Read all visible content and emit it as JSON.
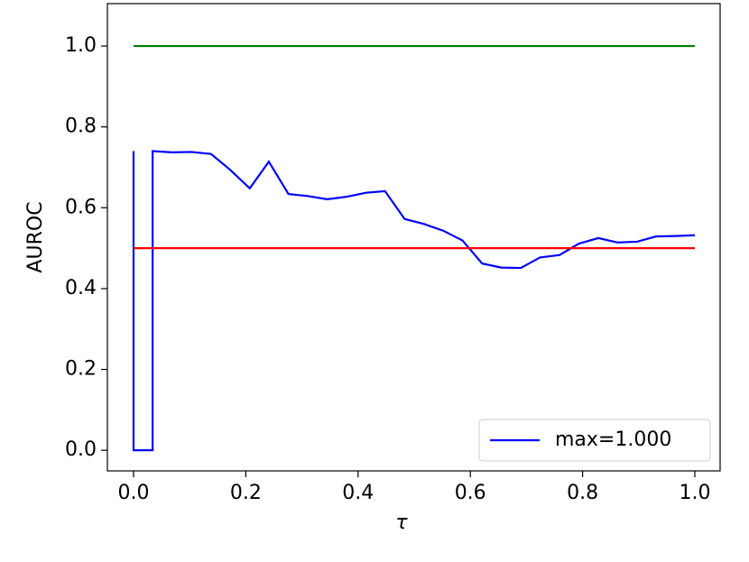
{
  "chart_data": {
    "type": "line",
    "xlabel": "τ",
    "ylabel": "AUROC",
    "xlim": [
      -0.0466,
      1.045
    ],
    "ylim": [
      -0.051,
      1.105
    ],
    "xticks": [
      {
        "value": 0,
        "label": "0.0"
      },
      0.2,
      0.4,
      0.6,
      0.8,
      {
        "value": 1,
        "label": "1.0"
      }
    ],
    "yticks": [
      {
        "value": 0,
        "label": "0.0"
      },
      0.2,
      0.4,
      0.6,
      0.8,
      {
        "value": 1,
        "label": "1.0"
      }
    ],
    "legend": "lower right",
    "series": [
      {
        "name": "max=1.000",
        "color": "#0000ff",
        "x": [
          0,
          0,
          0.034,
          0.034,
          0.069,
          0.103,
          0.138,
          0.172,
          0.207,
          0.241,
          0.276,
          0.31,
          0.345,
          0.379,
          0.414,
          0.448,
          0.483,
          0.517,
          0.552,
          0.586,
          0.621,
          0.655,
          0.69,
          0.724,
          0.759,
          0.793,
          0.828,
          0.862,
          0.897,
          0.931,
          0.966,
          1.0
        ],
        "values": [
          0.74,
          0,
          0,
          0.74,
          0.737,
          0.738,
          0.733,
          0.694,
          0.648,
          0.714,
          0.634,
          0.629,
          0.621,
          0.627,
          0.637,
          0.641,
          0.572,
          0.56,
          0.543,
          0.519,
          0.462,
          0.452,
          0.451,
          0.477,
          0.483,
          0.511,
          0.525,
          0.514,
          0.516,
          0.529,
          0.53,
          0.532
        ]
      },
      {
        "color": "#008000",
        "x": [
          0,
          1
        ],
        "values": [
          1,
          1
        ]
      },
      {
        "color": "#ff0000",
        "x": [
          0,
          1
        ],
        "values": [
          0.5,
          0.5
        ]
      }
    ]
  }
}
